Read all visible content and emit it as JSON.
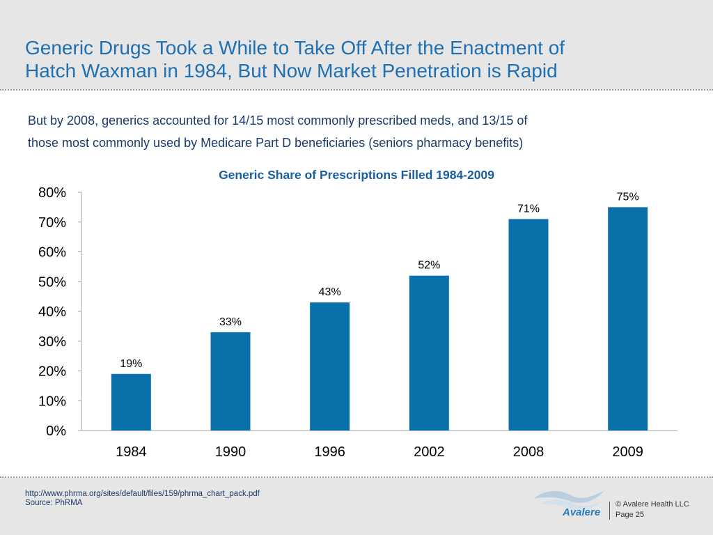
{
  "header": {
    "title": "Generic Drugs Took a While to Take Off After the Enactment of\nHatch Waxman in 1984, But Now Market Penetration is Rapid"
  },
  "subtitle": "But by 2008, generics accounted for 14/15 most commonly prescribed meds, and 13/15 of\nthose most commonly used by Medicare  Part D beneficiaries (seniors pharmacy benefits)",
  "chart_data": {
    "type": "bar",
    "title": "Generic Share of Prescriptions Filled 1984-2009",
    "categories": [
      "1984",
      "1990",
      "1996",
      "2002",
      "2008",
      "2009"
    ],
    "values": [
      19,
      33,
      43,
      52,
      71,
      75
    ],
    "value_labels": [
      "19%",
      "33%",
      "43%",
      "52%",
      "71%",
      "75%"
    ],
    "y_ticks": [
      "0%",
      "10%",
      "20%",
      "30%",
      "40%",
      "50%",
      "60%",
      "70%",
      "80%"
    ],
    "ylim": [
      0,
      80
    ],
    "xlabel": "",
    "ylabel": "",
    "grid": false,
    "bar_color": "#0a70aa"
  },
  "footer": {
    "source_url": "http://www.phrma.org/sites/default/files/159/phrma_chart_pack.pdf",
    "source_label": "Source: PhRMA",
    "logo_text": "Avalere",
    "copyright": "© Avalere Health LLC",
    "page": "Page 25"
  },
  "colors": {
    "title": "#1f6fb2",
    "subtitle": "#1a3a6a",
    "chart_title": "#1a5fa0",
    "band": "#e6e6e6"
  }
}
